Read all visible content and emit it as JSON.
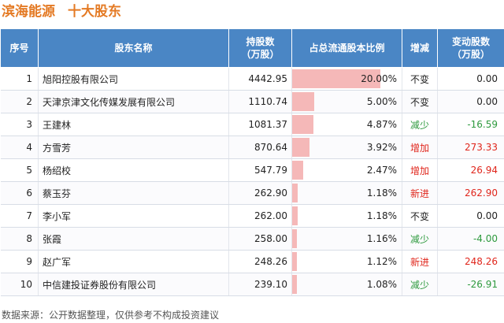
{
  "title": {
    "company": "滨海能源",
    "subtitle": "十大股东"
  },
  "headers": {
    "rank": "序号",
    "name": "股东名称",
    "shares_line1": "持股数",
    "shares_line2": "（万股）",
    "ratio": "占总流通股本比例",
    "change": "增减",
    "amount_line1": "变动股数",
    "amount_line2": "（万股）"
  },
  "colors": {
    "header_bg": "#4a86c5",
    "title": "#e47a24",
    "bar": "#f5b8b8",
    "up": "#e0261c",
    "down": "#2e9a3e"
  },
  "rows": [
    {
      "rank": "1",
      "name": "旭阳控股有限公司",
      "shares": "4442.95",
      "ratio": "20.00%",
      "ratio_value": 20.0,
      "change": "不变",
      "change_type": "flat",
      "amount": "0.00"
    },
    {
      "rank": "2",
      "name": "天津京津文化传媒发展有限公司",
      "shares": "1110.74",
      "ratio": "5.00%",
      "ratio_value": 5.0,
      "change": "不变",
      "change_type": "flat",
      "amount": "0.00"
    },
    {
      "rank": "3",
      "name": "王建林",
      "shares": "1081.37",
      "ratio": "4.87%",
      "ratio_value": 4.87,
      "change": "减少",
      "change_type": "down",
      "amount": "-16.59"
    },
    {
      "rank": "4",
      "name": "方雪芳",
      "shares": "870.64",
      "ratio": "3.92%",
      "ratio_value": 3.92,
      "change": "增加",
      "change_type": "up",
      "amount": "273.33"
    },
    {
      "rank": "5",
      "name": "杨绍校",
      "shares": "547.79",
      "ratio": "2.47%",
      "ratio_value": 2.47,
      "change": "增加",
      "change_type": "up",
      "amount": "26.94"
    },
    {
      "rank": "6",
      "name": "蔡玉芬",
      "shares": "262.90",
      "ratio": "1.18%",
      "ratio_value": 1.18,
      "change": "新进",
      "change_type": "up",
      "amount": "262.90"
    },
    {
      "rank": "7",
      "name": "李小军",
      "shares": "262.00",
      "ratio": "1.18%",
      "ratio_value": 1.18,
      "change": "不变",
      "change_type": "flat",
      "amount": "0.00"
    },
    {
      "rank": "8",
      "name": "张霞",
      "shares": "258.00",
      "ratio": "1.16%",
      "ratio_value": 1.16,
      "change": "减少",
      "change_type": "down",
      "amount": "-4.00"
    },
    {
      "rank": "9",
      "name": "赵广军",
      "shares": "248.26",
      "ratio": "1.12%",
      "ratio_value": 1.12,
      "change": "新进",
      "change_type": "up",
      "amount": "248.26"
    },
    {
      "rank": "10",
      "name": "中信建投证券股份有限公司",
      "shares": "239.10",
      "ratio": "1.08%",
      "ratio_value": 1.08,
      "change": "减少",
      "change_type": "down",
      "amount": "-26.91"
    }
  ],
  "footer": "数据来源：公开数据整理，仅供参考不构成投资建议"
}
